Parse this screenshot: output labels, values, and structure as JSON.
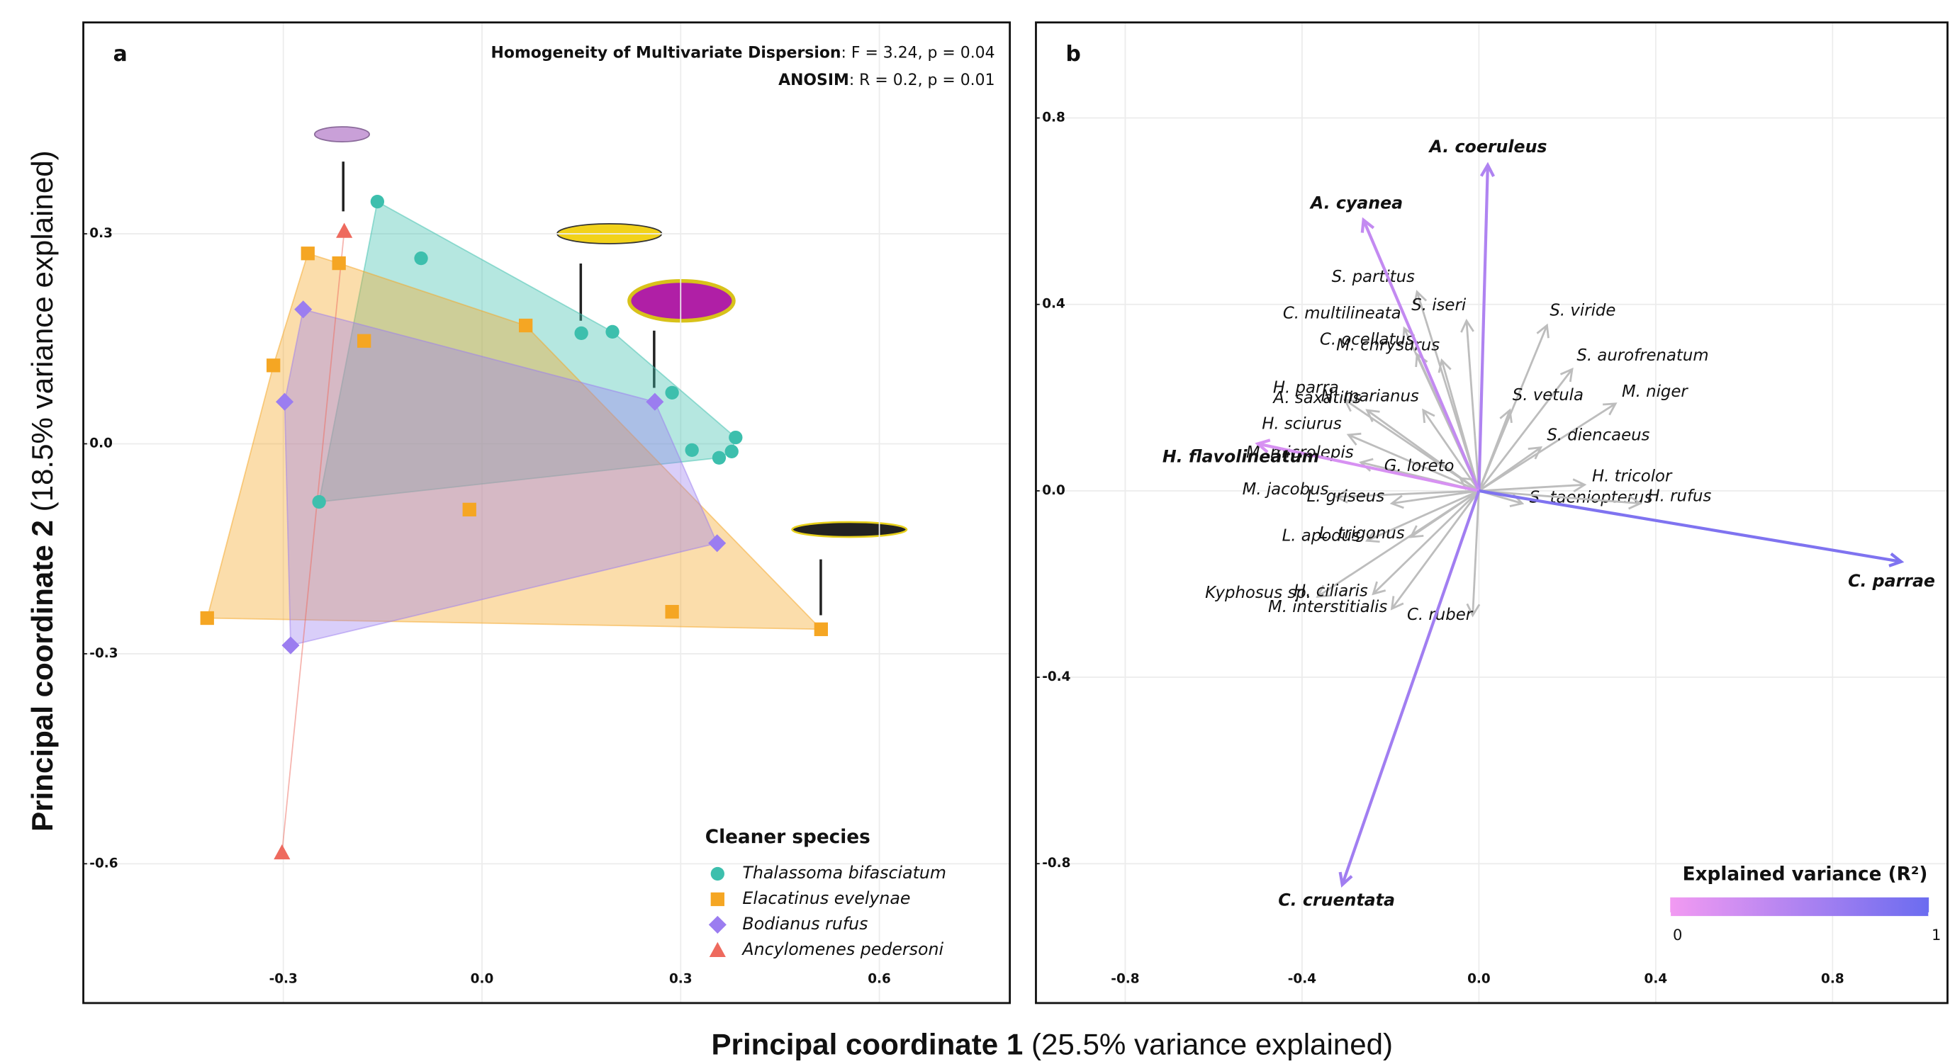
{
  "figure": {
    "xlabel": {
      "bold": "Principal coordinate 1",
      "rest": "(25.5% variance explained)"
    },
    "ylabel": {
      "bold": "Principal coordinate 2",
      "rest": "(18.5% variance explained)"
    }
  },
  "chart_data": [
    {
      "type": "scatter",
      "panel_label": "a",
      "annotations": [
        {
          "label": "Homogeneity of Multivariate Dispersion",
          "text": ": F = 3.24, p = 0.04"
        },
        {
          "label": "ANOSIM",
          "text": ": R = 0.2, p = 0.01"
        }
      ],
      "xlim": [
        -0.602,
        0.797
      ],
      "ylim": [
        -0.799,
        0.602
      ],
      "xticks": [
        -0.3,
        {
          "value": 0,
          "label": "0.0"
        },
        0.3,
        0.6
      ],
      "yticks": [
        0.3,
        {
          "value": 0,
          "label": "0.0"
        },
        -0.3,
        -0.6
      ],
      "grid": true,
      "hulls": true,
      "legend": {
        "title": "Cleaner species",
        "position": "bottom right"
      },
      "series": [
        {
          "name": "Thalassoma bifasciatum",
          "color": "#3dbfad",
          "marker": "circle",
          "x": [
            -0.158,
            -0.092,
            0.15,
            0.197,
            0.287,
            0.317,
            0.358,
            0.377,
            0.383,
            -0.246
          ],
          "y": [
            0.346,
            0.265,
            0.158,
            0.16,
            0.073,
            -0.009,
            -0.02,
            -0.011,
            0.009,
            -0.083
          ]
        },
        {
          "name": "Elacatinus evelynae",
          "color": "#f5a623",
          "marker": "square",
          "x": [
            -0.263,
            -0.216,
            -0.315,
            -0.178,
            0.066,
            -0.019,
            -0.415,
            0.287,
            0.512
          ],
          "y": [
            0.272,
            0.258,
            0.112,
            0.147,
            0.169,
            -0.094,
            -0.249,
            -0.24,
            -0.265
          ]
        },
        {
          "name": "Bodianus rufus",
          "color": "#9b7df0",
          "marker": "diamond",
          "x": [
            -0.27,
            -0.298,
            0.261,
            0.355,
            -0.289
          ],
          "y": [
            0.192,
            0.06,
            0.06,
            -0.142,
            -0.288
          ]
        },
        {
          "name": "Ancylomenes pedersoni",
          "color": "#ee6a5e",
          "marker": "triangle",
          "x": [
            -0.208,
            -0.302
          ],
          "y": [
            0.304,
            -0.584
          ]
        }
      ]
    },
    {
      "type": "biplot",
      "panel_label": "b",
      "xlim": [
        -1.002,
        1.06
      ],
      "ylim": [
        -1.099,
        1.005
      ],
      "xticks": [
        -0.8,
        -0.4,
        {
          "value": 0,
          "label": "0.0"
        },
        0.4,
        0.8
      ],
      "yticks": [
        0.8,
        0.4,
        {
          "value": 0,
          "label": "0.0"
        },
        -0.4,
        -0.8
      ],
      "grid": true,
      "colorbar": {
        "title": "Explained variance (R²)",
        "colors": [
          "#f29af2",
          "#6b6cf0"
        ],
        "lim": [
          0,
          1
        ],
        "ticks": [
          0,
          1
        ]
      },
      "arrows": [
        {
          "label": "A. coeruleus",
          "x": 0.02,
          "y": 0.699,
          "r2": 0.5
        },
        {
          "label": "A. cyanea",
          "x": -0.261,
          "y": 0.581,
          "r2": 0.35
        },
        {
          "label": "H. flavolineatum",
          "x": -0.5,
          "y": 0.101,
          "r2": 0.2
        },
        {
          "label": "C. parrae",
          "x": 0.955,
          "y": -0.152,
          "r2": 0.85
        },
        {
          "label": "C. cruentata",
          "x": -0.309,
          "y": -0.845,
          "r2": 0.6
        }
      ],
      "other_arrows": {
        "color": "#bdbdbd",
        "items": [
          {
            "label": "S. partitus",
            "x": -0.14,
            "y": 0.427
          },
          {
            "label": "S. iseri",
            "x": -0.028,
            "y": 0.365
          },
          {
            "label": "S. viride",
            "x": 0.154,
            "y": 0.355
          },
          {
            "label": "C. multilineata",
            "x": -0.169,
            "y": 0.349
          },
          {
            "label": "C. ocellatus",
            "x": -0.14,
            "y": 0.293
          },
          {
            "label": "M. chrysurus",
            "x": -0.084,
            "y": 0.28
          },
          {
            "label": "S. aurofrenatum",
            "x": 0.211,
            "y": 0.261
          },
          {
            "label": "H. parra",
            "x": -0.303,
            "y": 0.195
          },
          {
            "label": "A. saxatilis",
            "x": -0.253,
            "y": 0.173
          },
          {
            "label": "M. niger",
            "x": 0.309,
            "y": 0.187
          },
          {
            "label": "N. marianus",
            "x": -0.126,
            "y": 0.173
          },
          {
            "label": "S. vetula",
            "x": 0.07,
            "y": 0.173
          },
          {
            "label": "H. sciurus",
            "x": -0.295,
            "y": 0.12
          },
          {
            "label": "S. diencaeus",
            "x": 0.14,
            "y": 0.093
          },
          {
            "label": "M. microlepis",
            "x": -0.267,
            "y": 0.061
          },
          {
            "label": "G. loreto",
            "x": -0.042,
            "y": 0.027
          },
          {
            "label": "H. tricolor",
            "x": 0.239,
            "y": 0.013
          },
          {
            "label": "M. jacobus",
            "x": -0.323,
            "y": -0.013
          },
          {
            "label": "L. griseus",
            "x": -0.197,
            "y": -0.027
          },
          {
            "label": "S. taeniopterus",
            "x": 0.098,
            "y": -0.027
          },
          {
            "label": "H. rufus",
            "x": 0.365,
            "y": -0.027
          },
          {
            "label": "L. apodus",
            "x": -0.253,
            "y": -0.107
          },
          {
            "label": "L. trigonus",
            "x": -0.154,
            "y": -0.099
          },
          {
            "label": "Kyphosus sp.",
            "x": -0.365,
            "y": -0.227
          },
          {
            "label": "H. ciliaris",
            "x": -0.239,
            "y": -0.221
          },
          {
            "label": "M. interstitialis",
            "x": -0.197,
            "y": -0.253
          },
          {
            "label": "C. ruber",
            "x": -0.014,
            "y": -0.267
          }
        ]
      }
    }
  ]
}
